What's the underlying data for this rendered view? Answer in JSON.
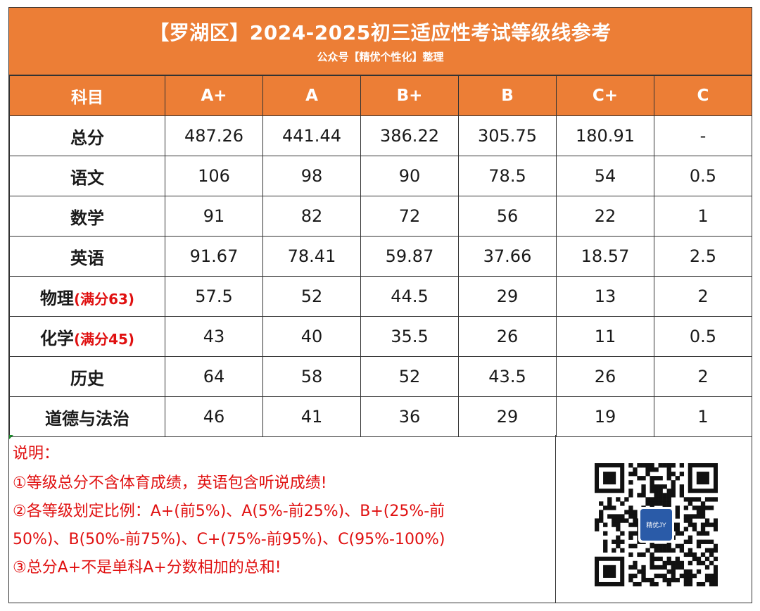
{
  "title": {
    "main": "【罗湖区】2024-2025初三适应性考试等级线参考",
    "sub": "公众号【精优个性化】整理"
  },
  "table": {
    "headers": [
      "科目",
      "A+",
      "A",
      "B+",
      "B",
      "C+",
      "C"
    ],
    "rows": [
      {
        "subject": "总分",
        "note": "",
        "values": [
          "487.26",
          "441.44",
          "386.22",
          "305.75",
          "180.91",
          "-"
        ]
      },
      {
        "subject": "语文",
        "note": "",
        "values": [
          "106",
          "98",
          "90",
          "78.5",
          "54",
          "0.5"
        ]
      },
      {
        "subject": "数学",
        "note": "",
        "values": [
          "91",
          "82",
          "72",
          "56",
          "22",
          "1"
        ]
      },
      {
        "subject": "英语",
        "note": "",
        "values": [
          "91.67",
          "78.41",
          "59.87",
          "37.66",
          "18.57",
          "2.5"
        ]
      },
      {
        "subject": "物理",
        "note": "(满分63)",
        "values": [
          "57.5",
          "52",
          "44.5",
          "29",
          "13",
          "2"
        ]
      },
      {
        "subject": "化学",
        "note": "(满分45)",
        "values": [
          "43",
          "40",
          "35.5",
          "26",
          "11",
          "0.5"
        ]
      },
      {
        "subject": "历史",
        "note": "",
        "values": [
          "64",
          "58",
          "52",
          "43.5",
          "26",
          "2"
        ]
      },
      {
        "subject": "道德与法治",
        "note": "",
        "values": [
          "46",
          "41",
          "36",
          "29",
          "19",
          "1"
        ]
      }
    ]
  },
  "notes": {
    "heading": "说明：",
    "lines": [
      "①等级总分不含体育成绩，英语包含听说成绩!",
      "②各等级划定比例：A+(前5%)、A(5%-前25%)、B+(25%-前",
      "50%)、B(50%-前75%)、C+(75%-前95%)、C(95%-100%)",
      "③总分A+不是单科A+分数相加的总和!"
    ]
  },
  "qr": {
    "logo_text": "精优JY"
  },
  "colors": {
    "header_orange": "#ec7e36",
    "note_red": "#e01010"
  }
}
